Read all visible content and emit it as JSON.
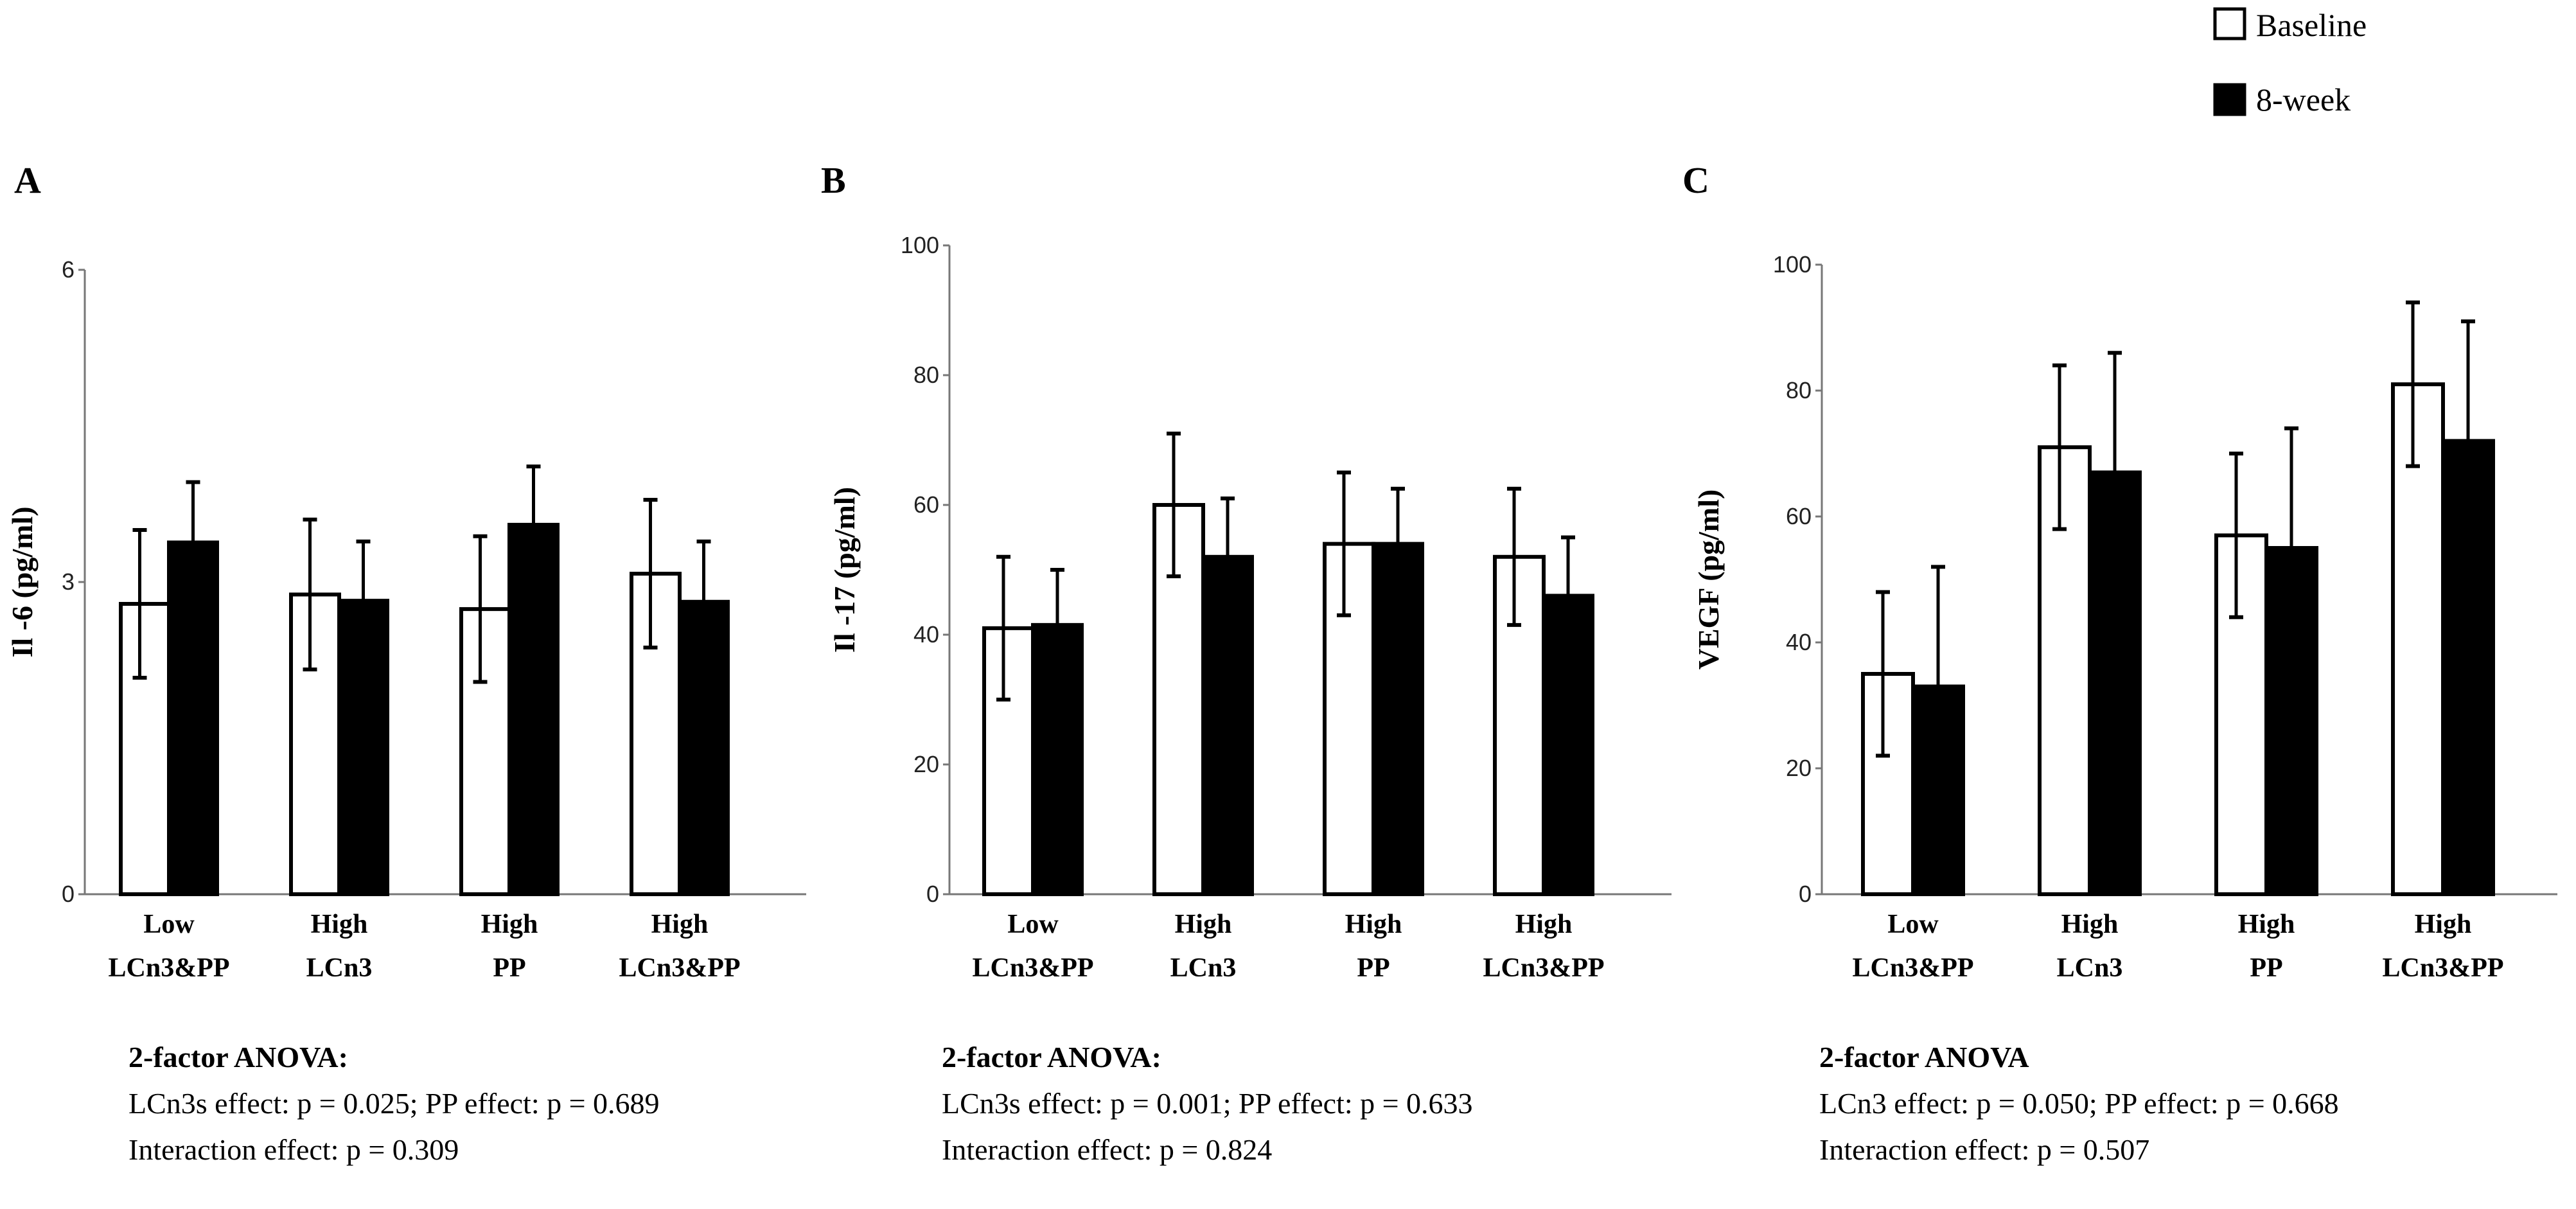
{
  "legend": {
    "items": [
      {
        "label": "Baseline",
        "fill": "#ffffff"
      },
      {
        "label": "8-week",
        "fill": "#000000"
      }
    ]
  },
  "chart_data": [
    {
      "type": "bar",
      "panel": "A",
      "ylabel": "Il -6 (pg/ml)",
      "ylim": [
        0,
        6
      ],
      "yticks": [
        "0",
        "3",
        "6"
      ],
      "categories": [
        [
          "Low",
          "LCn3&PP"
        ],
        [
          "High",
          "LCn3"
        ],
        [
          "High",
          "PP"
        ],
        [
          "High",
          "LCn3&PP"
        ]
      ],
      "series": [
        {
          "name": "Baseline",
          "values": [
            2.79,
            2.88,
            2.74,
            3.08
          ],
          "error": [
            0.71,
            0.72,
            0.7,
            0.71
          ]
        },
        {
          "name": "8-week",
          "values": [
            3.38,
            2.82,
            3.55,
            2.81
          ],
          "error": [
            0.58,
            0.57,
            0.56,
            0.58
          ]
        }
      ],
      "anova": {
        "title": "2-factor ANOVA:",
        "line1": "LCn3s effect:  p = 0.025; PP effect: p = 0.689",
        "line2": "Interaction effect: p = 0.309"
      }
    },
    {
      "type": "bar",
      "panel": "B",
      "ylabel": "Il -17 (pg/ml)",
      "ylim": [
        0,
        100
      ],
      "yticks": [
        "0",
        "20",
        "40",
        "60",
        "80",
        "100"
      ],
      "categories": [
        [
          "Low",
          "LCn3&PP"
        ],
        [
          "High",
          "LCn3"
        ],
        [
          "High",
          "PP"
        ],
        [
          "High",
          "LCn3&PP"
        ]
      ],
      "series": [
        {
          "name": "Baseline",
          "values": [
            41,
            60,
            54,
            52
          ],
          "error": [
            11,
            11,
            11,
            10.5
          ]
        },
        {
          "name": "8-week",
          "values": [
            41.5,
            52,
            54,
            46
          ],
          "error": [
            8.5,
            9,
            8.5,
            9
          ]
        }
      ],
      "anova": {
        "title": "2-factor ANOVA:",
        "line1": "LCn3s effect:  p = 0.001; PP effect: p = 0.633",
        "line2": "Interaction effect: p = 0.824"
      }
    },
    {
      "type": "bar",
      "panel": "C",
      "ylabel": "VEGF (pg/ml)",
      "ylim": [
        0,
        100
      ],
      "yticks": [
        "0",
        "20",
        "40",
        "60",
        "80",
        "100"
      ],
      "categories": [
        [
          "Low",
          "LCn3&PP"
        ],
        [
          "High",
          "LCn3"
        ],
        [
          "High",
          "PP"
        ],
        [
          "High",
          "LCn3&PP"
        ]
      ],
      "series": [
        {
          "name": "Baseline",
          "values": [
            35,
            71,
            57,
            81
          ],
          "error": [
            13,
            13,
            13,
            13
          ]
        },
        {
          "name": "8-week",
          "values": [
            33,
            67,
            55,
            72
          ],
          "error": [
            19,
            19,
            19,
            19
          ]
        }
      ],
      "anova": {
        "title": "2-factor ANOVA",
        "line1": "LCn3 effect: p = 0.050; PP effect:  p = 0.668",
        "line2": "Interaction effect: p = 0.507"
      }
    }
  ]
}
